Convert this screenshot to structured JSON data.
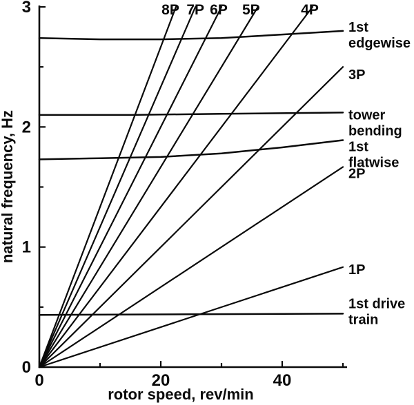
{
  "figure": {
    "description": "Campbell diagram: natural frequencies of turbine modes versus rotor speed with per-revolution excitation lines"
  },
  "chart_data": {
    "type": "line",
    "title": "",
    "xlabel": "rotor speed, rev/min",
    "ylabel": "natural frequency, Hz",
    "xlim": [
      0,
      50
    ],
    "ylim": [
      0,
      3
    ],
    "grid": false,
    "legend": "inline labels",
    "axis_color": "#0a0a0a",
    "background_color": "#ffffff",
    "x_ticks": [
      {
        "value": 0,
        "label": "0"
      },
      {
        "value": 10,
        "label": ""
      },
      {
        "value": 20,
        "label": "20"
      },
      {
        "value": 30,
        "label": ""
      },
      {
        "value": 40,
        "label": "40"
      },
      {
        "value": 50,
        "label": ""
      }
    ],
    "y_ticks": [
      {
        "value": 0,
        "label": "0"
      },
      {
        "value": 0.5,
        "label": ""
      },
      {
        "value": 1,
        "label": "1"
      },
      {
        "value": 1.5,
        "label": ""
      },
      {
        "value": 2,
        "label": "2"
      },
      {
        "value": 2.5,
        "label": ""
      },
      {
        "value": 3,
        "label": "3"
      }
    ],
    "series": [
      {
        "id": "harmonic-8P",
        "kind": "harmonic",
        "per_rev": 8,
        "points": [
          [
            0,
            0
          ],
          [
            22.5,
            3
          ]
        ],
        "label_lines": [
          "8P"
        ],
        "placement": "top",
        "dx": -8,
        "dy": 0
      },
      {
        "id": "harmonic-7P",
        "kind": "harmonic",
        "per_rev": 7,
        "points": [
          [
            0,
            0
          ],
          [
            25.7,
            3
          ]
        ],
        "label_lines": [
          "7P"
        ],
        "placement": "top",
        "dx": 0,
        "dy": 0
      },
      {
        "id": "harmonic-6P",
        "kind": "harmonic",
        "per_rev": 6,
        "points": [
          [
            0,
            0
          ],
          [
            30,
            3
          ]
        ],
        "label_lines": [
          "6P"
        ],
        "placement": "top",
        "dx": -4,
        "dy": 0
      },
      {
        "id": "harmonic-5P",
        "kind": "harmonic",
        "per_rev": 5,
        "points": [
          [
            0,
            0
          ],
          [
            36,
            3
          ]
        ],
        "label_lines": [
          "5P"
        ],
        "placement": "top",
        "dx": -10,
        "dy": 0
      },
      {
        "id": "harmonic-4P",
        "kind": "harmonic",
        "per_rev": 4,
        "points": [
          [
            0,
            0
          ],
          [
            45,
            3
          ]
        ],
        "label_lines": [
          "4P"
        ],
        "placement": "top",
        "dx": -4,
        "dy": 0
      },
      {
        "id": "harmonic-3P",
        "kind": "harmonic",
        "per_rev": 3,
        "points": [
          [
            0,
            0
          ],
          [
            50,
            2.5
          ]
        ],
        "label_lines": [
          "3P"
        ],
        "placement": "right",
        "dx": 0,
        "dy": 12
      },
      {
        "id": "harmonic-2P",
        "kind": "harmonic",
        "per_rev": 2,
        "points": [
          [
            0,
            0
          ],
          [
            50,
            1.667
          ]
        ],
        "label_lines": [
          "2P"
        ],
        "placement": "right",
        "dx": 0,
        "dy": 10
      },
      {
        "id": "harmonic-1P",
        "kind": "harmonic",
        "per_rev": 1,
        "points": [
          [
            0,
            0
          ],
          [
            50,
            0.833
          ]
        ],
        "label_lines": [
          "1P"
        ],
        "placement": "right",
        "dx": 0,
        "dy": 4
      },
      {
        "id": "mode-1st-edgewise",
        "kind": "mode",
        "points": [
          [
            0,
            2.74
          ],
          [
            10,
            2.73
          ],
          [
            20,
            2.73
          ],
          [
            30,
            2.74
          ],
          [
            40,
            2.77
          ],
          [
            50,
            2.8
          ]
        ],
        "label_lines": [
          "1st",
          "edgewise"
        ],
        "placement": "right",
        "dx": 0,
        "dy": -5
      },
      {
        "id": "mode-tower-bending",
        "kind": "mode",
        "points": [
          [
            0,
            2.1
          ],
          [
            15,
            2.1
          ],
          [
            30,
            2.11
          ],
          [
            50,
            2.12
          ]
        ],
        "label_lines": [
          "tower",
          "bending"
        ],
        "placement": "right",
        "dx": 0,
        "dy": 4
      },
      {
        "id": "mode-1st-flatwise",
        "kind": "mode",
        "points": [
          [
            0,
            1.73
          ],
          [
            10,
            1.74
          ],
          [
            20,
            1.75
          ],
          [
            30,
            1.78
          ],
          [
            40,
            1.83
          ],
          [
            50,
            1.89
          ]
        ],
        "label_lines": [
          "1st",
          "flatwise"
        ],
        "placement": "right",
        "dx": 0,
        "dy": 10
      },
      {
        "id": "mode-1st-drive-train",
        "kind": "mode",
        "points": [
          [
            0,
            0.435
          ],
          [
            25,
            0.44
          ],
          [
            50,
            0.445
          ]
        ],
        "label_lines": [
          "1st drive",
          "train"
        ],
        "placement": "right",
        "dx": 0,
        "dy": -14
      }
    ]
  }
}
